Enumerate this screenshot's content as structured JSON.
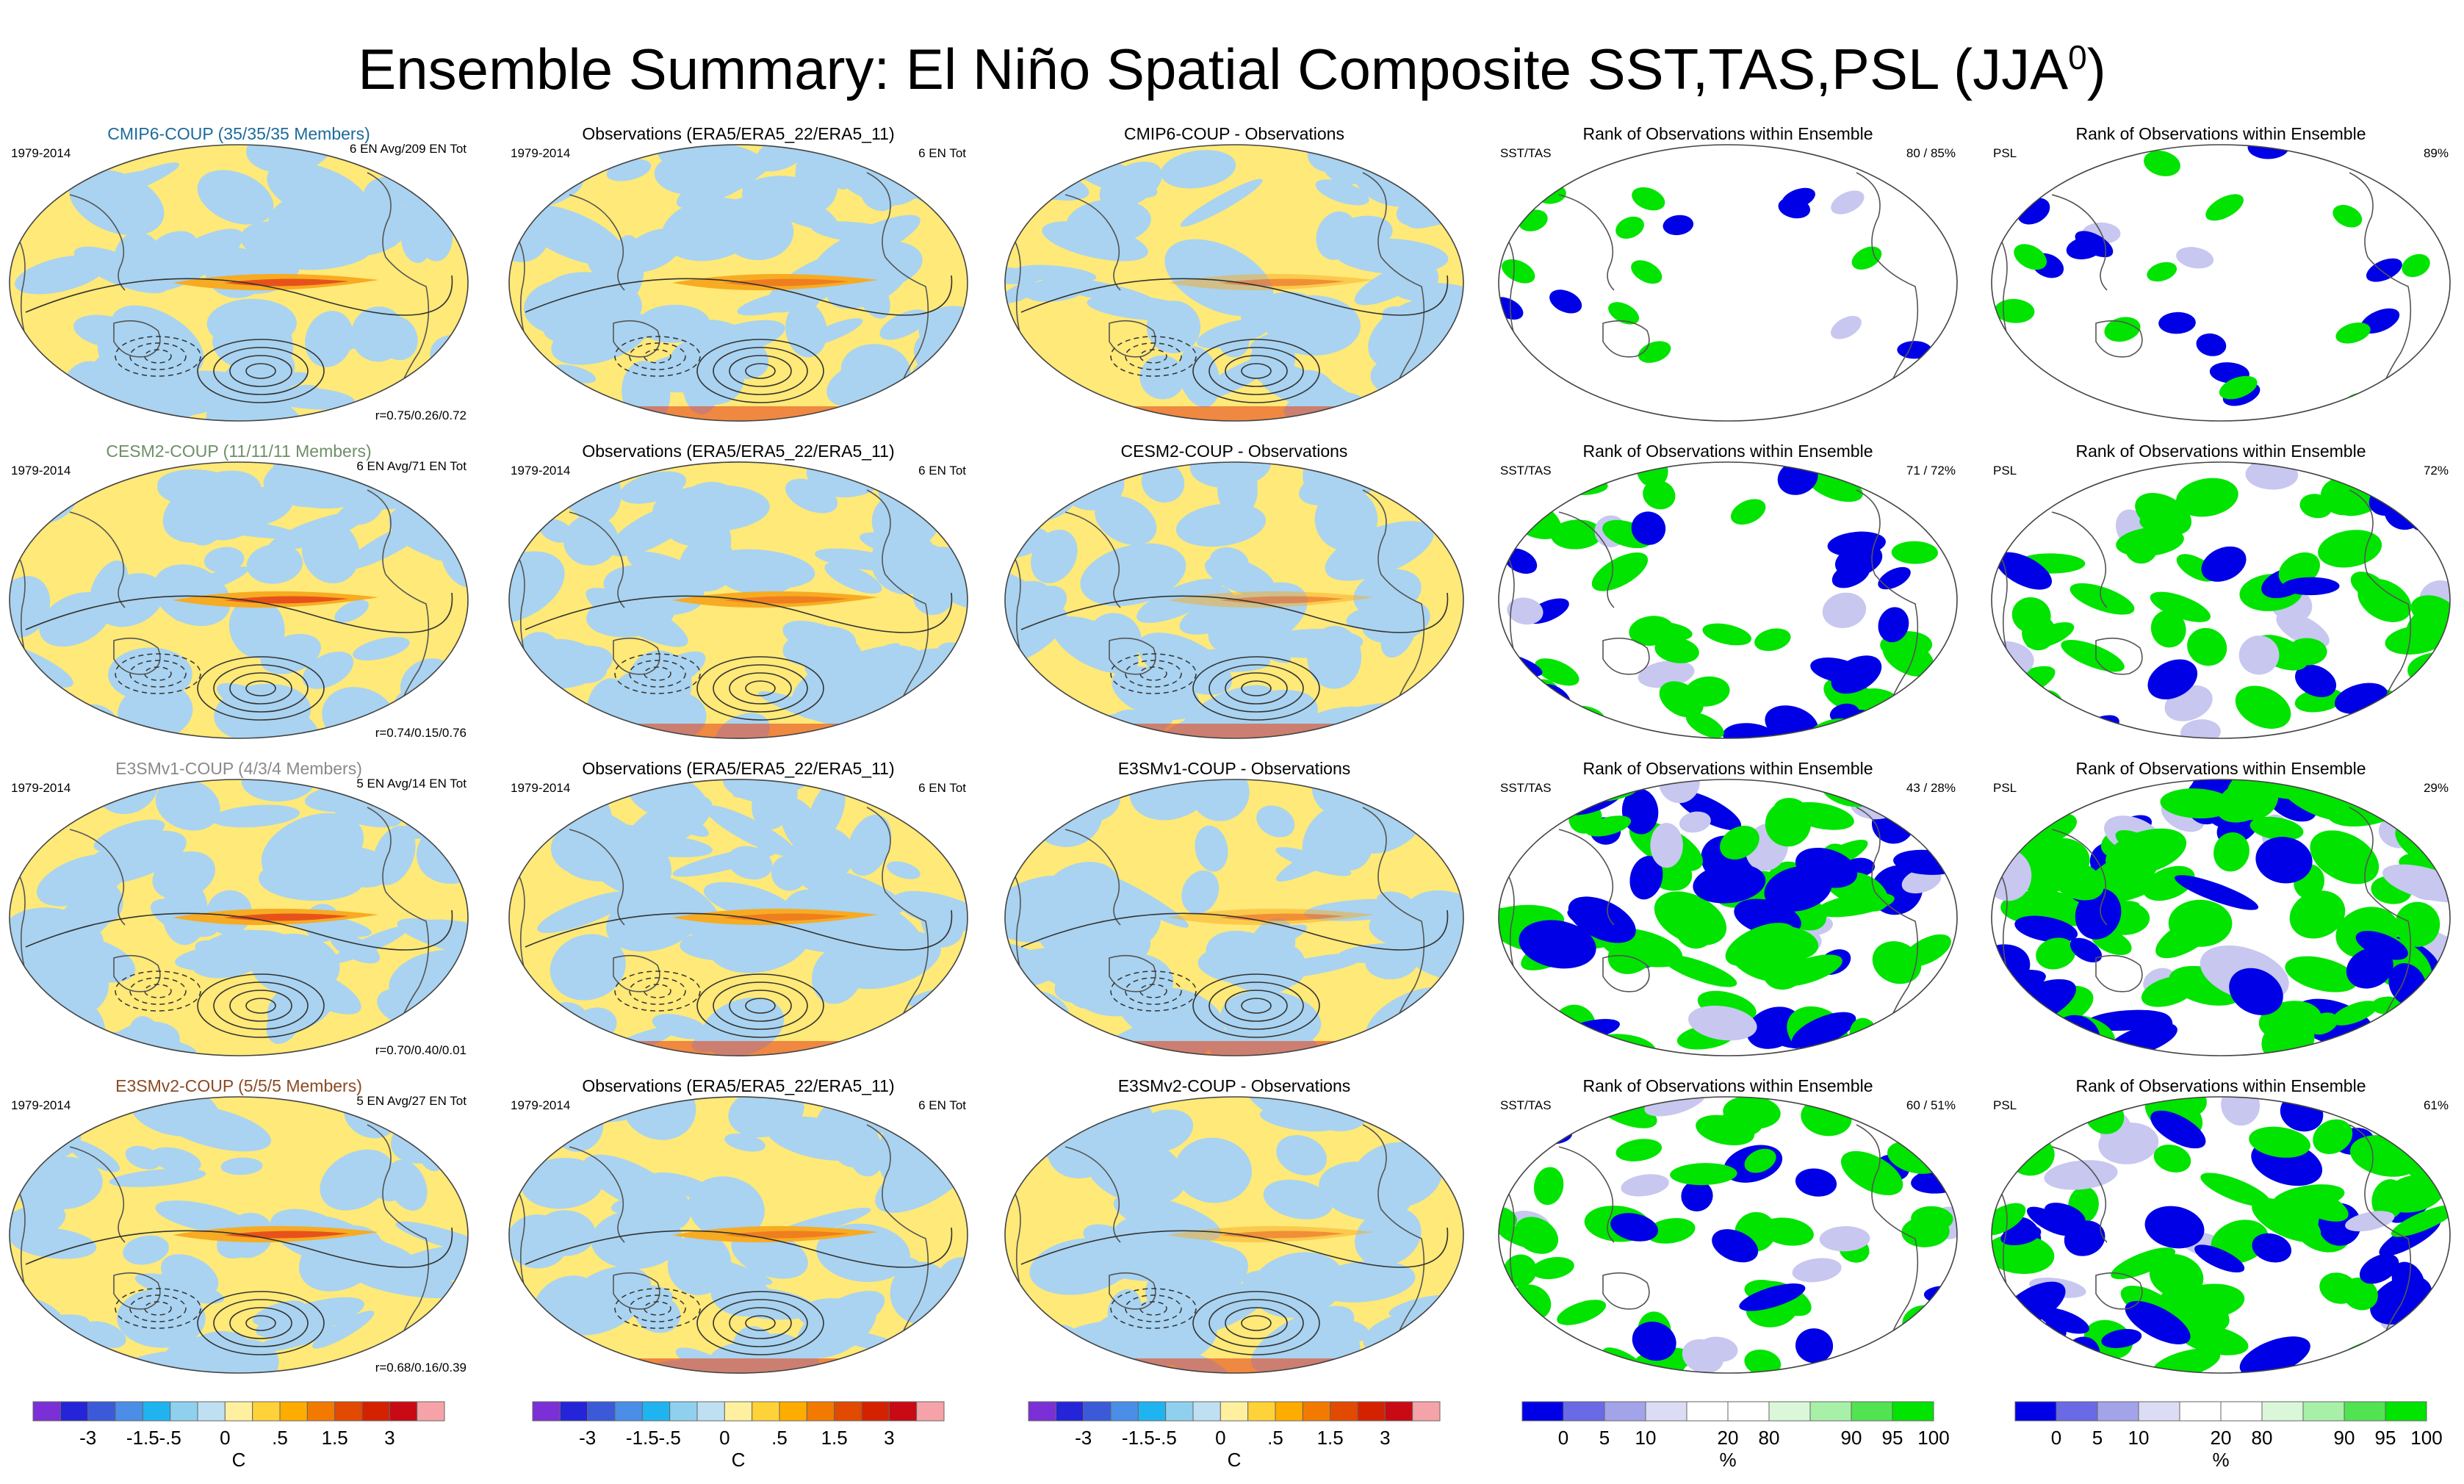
{
  "title": {
    "main": "Ensemble Summary: El Niño Spatial Composite SST,TAS,PSL (JJA",
    "superscript": "0",
    "close": ")"
  },
  "rows": [
    {
      "model_title": "CMIP6-COUP (35/35/35 Members)",
      "model_title_color": "#1c6a9a",
      "model_period": "1979-2014",
      "model_count": "6 EN Avg/209 EN Tot",
      "model_corr": "r=0.75/0.26/0.72",
      "obs_title": "Observations (ERA5/ERA5_22/ERA5_11)",
      "obs_period": "1979-2014",
      "obs_count": "6 EN Tot",
      "diff_title": "CMIP6-COUP - Observations",
      "rank_sst_title": "Rank of Observations within Ensemble",
      "rank_sst_label": "SST/TAS",
      "rank_sst_pct": "80 /  85%",
      "rank_psl_title": "Rank of Observations within Ensemble",
      "rank_psl_label": "PSL",
      "rank_psl_pct": "89%",
      "rank_level": 0.1
    },
    {
      "model_title": "CESM2-COUP (11/11/11 Members)",
      "model_title_color": "#6e8f68",
      "model_period": "1979-2014",
      "model_count": "6 EN Avg/71 EN Tot",
      "model_corr": "r=0.74/0.15/0.76",
      "obs_title": "Observations (ERA5/ERA5_22/ERA5_11)",
      "obs_period": "1979-2014",
      "obs_count": "6 EN Tot",
      "diff_title": "CESM2-COUP - Observations",
      "rank_sst_title": "Rank of Observations within Ensemble",
      "rank_sst_label": "SST/TAS",
      "rank_sst_pct": "71 /  72%",
      "rank_psl_title": "Rank of Observations within Ensemble",
      "rank_psl_label": "PSL",
      "rank_psl_pct": "72%",
      "rank_level": 0.5
    },
    {
      "model_title": "E3SMv1-COUP (4/3/4 Members)",
      "model_title_color": "#8a8a8a",
      "model_period": "1979-2014",
      "model_count": "5 EN Avg/14 EN Tot",
      "model_corr": "r=0.70/0.40/0.01",
      "obs_title": "Observations (ERA5/ERA5_22/ERA5_11)",
      "obs_period": "1979-2014",
      "obs_count": "6 EN Tot",
      "diff_title": "E3SMv1-COUP - Observations",
      "rank_sst_title": "Rank of Observations within Ensemble",
      "rank_sst_label": "SST/TAS",
      "rank_sst_pct": "43 /  28%",
      "rank_psl_title": "Rank of Observations within Ensemble",
      "rank_psl_label": "PSL",
      "rank_psl_pct": "29%",
      "rank_level": 0.85
    },
    {
      "model_title": "E3SMv2-COUP (5/5/5 Members)",
      "model_title_color": "#8b4a22",
      "model_period": "1979-2014",
      "model_count": "5 EN Avg/27 EN Tot",
      "model_corr": "r=0.68/0.16/0.39",
      "obs_title": "Observations (ERA5/ERA5_22/ERA5_11)",
      "obs_period": "1979-2014",
      "obs_count": "6 EN Tot",
      "diff_title": "E3SMv2-COUP - Observations",
      "rank_sst_title": "Rank of Observations within Ensemble",
      "rank_sst_label": "SST/TAS",
      "rank_sst_pct": "60 /  51%",
      "rank_psl_title": "Rank of Observations within Ensemble",
      "rank_psl_label": "PSL",
      "rank_psl_pct": "61%",
      "rank_level": 0.6
    }
  ],
  "colorbar_temp": {
    "colors": [
      "#7b2fd6",
      "#2424d8",
      "#3a5ad8",
      "#4a8ee8",
      "#1fb4f0",
      "#8fd0ee",
      "#bfe0f2",
      "#fff0a0",
      "#ffd23a",
      "#ffac00",
      "#f27a00",
      "#e24a00",
      "#d42200",
      "#c80a14",
      "#f5a3a8"
    ],
    "ticks": [
      "-3",
      "-1.5",
      "-.5",
      "0",
      ".5",
      "1.5",
      "3"
    ],
    "unit": "C"
  },
  "colorbar_rank": {
    "colors": [
      "#0000e6",
      "#6a6ae6",
      "#a3a3ea",
      "#dcdcf5",
      "#ffffff",
      "#ffffff",
      "#daf7da",
      "#a8f0a8",
      "#52e352",
      "#00e400"
    ],
    "ticks": [
      "0",
      "5",
      "10",
      "20",
      "80",
      "90",
      "95",
      "100"
    ],
    "unit": "%"
  },
  "palette": {
    "warm": "#ffe978",
    "cool": "#a9d3f0",
    "orange": "#f7ab22",
    "red": "#e4481a",
    "blue": "#0000e6",
    "green": "#00e400"
  }
}
